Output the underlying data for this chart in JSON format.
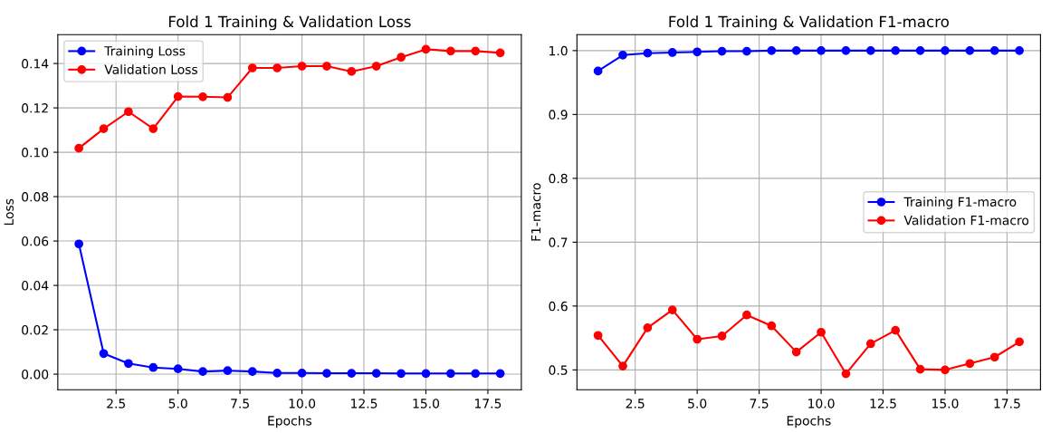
{
  "chart_data": [
    {
      "type": "line",
      "title": "Fold 1 Training & Validation Loss",
      "xlabel": "Epochs",
      "ylabel": "Loss",
      "x": [
        1,
        2,
        3,
        4,
        5,
        6,
        7,
        8,
        9,
        10,
        11,
        12,
        13,
        14,
        15,
        16,
        17,
        18
      ],
      "series": [
        {
          "name": "Training Loss",
          "color": "#0000ff",
          "values": [
            0.0587,
            0.0093,
            0.0048,
            0.003,
            0.0024,
            0.0012,
            0.0016,
            0.0012,
            0.0005,
            0.0005,
            0.0004,
            0.0004,
            0.0004,
            0.0003,
            0.0003,
            0.0003,
            0.0003,
            0.0003
          ]
        },
        {
          "name": "Validation Loss",
          "color": "#ff0000",
          "values": [
            0.1018,
            0.1106,
            0.1183,
            0.1106,
            0.1251,
            0.125,
            0.1247,
            0.138,
            0.138,
            0.1388,
            0.1388,
            0.1364,
            0.1388,
            0.1428,
            0.1464,
            0.1456,
            0.1456,
            0.1448
          ]
        }
      ],
      "xlim": [
        0.15,
        18.85
      ],
      "ylim": [
        -0.007,
        0.153
      ],
      "xticks": [
        {
          "value": 2.5,
          "label": "2.5"
        },
        {
          "value": 5,
          "label": "5.0"
        },
        {
          "value": 7.5,
          "label": "7.5"
        },
        {
          "value": 10,
          "label": "10.0"
        },
        {
          "value": 12.5,
          "label": "12.5"
        },
        {
          "value": 15,
          "label": "15.0"
        },
        {
          "value": 17.5,
          "label": "17.5"
        }
      ],
      "yticks": [
        {
          "value": 0,
          "label": "0.00"
        },
        {
          "value": 0.02,
          "label": "0.02"
        },
        {
          "value": 0.04,
          "label": "0.04"
        },
        {
          "value": 0.06,
          "label": "0.06"
        },
        {
          "value": 0.08,
          "label": "0.08"
        },
        {
          "value": 0.1,
          "label": "0.10"
        },
        {
          "value": 0.12,
          "label": "0.12"
        },
        {
          "value": 0.14,
          "label": "0.14"
        }
      ],
      "grid": true,
      "legend": "top left",
      "marker": "circle",
      "line_style": "solid"
    },
    {
      "type": "line",
      "title": "Fold 1 Training & Validation F1-macro",
      "xlabel": "Epochs",
      "ylabel": "F1-macro",
      "x": [
        1,
        2,
        3,
        4,
        5,
        6,
        7,
        8,
        9,
        10,
        11,
        12,
        13,
        14,
        15,
        16,
        17,
        18
      ],
      "series": [
        {
          "name": "Training F1-macro",
          "color": "#0000ff",
          "values": [
            0.968,
            0.993,
            0.996,
            0.997,
            0.998,
            0.999,
            0.999,
            1.0,
            1.0,
            1.0,
            1.0,
            1.0,
            1.0,
            1.0,
            1.0,
            1.0,
            1.0,
            1.0
          ]
        },
        {
          "name": "Validation F1-macro",
          "color": "#ff0000",
          "values": [
            0.554,
            0.506,
            0.566,
            0.594,
            0.548,
            0.553,
            0.586,
            0.569,
            0.528,
            0.559,
            0.494,
            0.541,
            0.562,
            0.501,
            0.5,
            0.51,
            0.52,
            0.544
          ]
        }
      ],
      "xlim": [
        0.15,
        18.85
      ],
      "ylim": [
        0.469,
        1.025
      ],
      "xticks": [
        {
          "value": 2.5,
          "label": "2.5"
        },
        {
          "value": 5,
          "label": "5.0"
        },
        {
          "value": 7.5,
          "label": "7.5"
        },
        {
          "value": 10,
          "label": "10.0"
        },
        {
          "value": 12.5,
          "label": "12.5"
        },
        {
          "value": 15,
          "label": "15.0"
        },
        {
          "value": 17.5,
          "label": "17.5"
        }
      ],
      "yticks": [
        {
          "value": 0.5,
          "label": "0.5"
        },
        {
          "value": 0.6,
          "label": "0.6"
        },
        {
          "value": 0.7,
          "label": "0.7"
        },
        {
          "value": 0.8,
          "label": "0.8"
        },
        {
          "value": 0.9,
          "label": "0.9"
        },
        {
          "value": 1.0,
          "label": "1.0"
        }
      ],
      "grid": true,
      "legend": "right",
      "marker": "circle",
      "line_style": "solid"
    }
  ]
}
